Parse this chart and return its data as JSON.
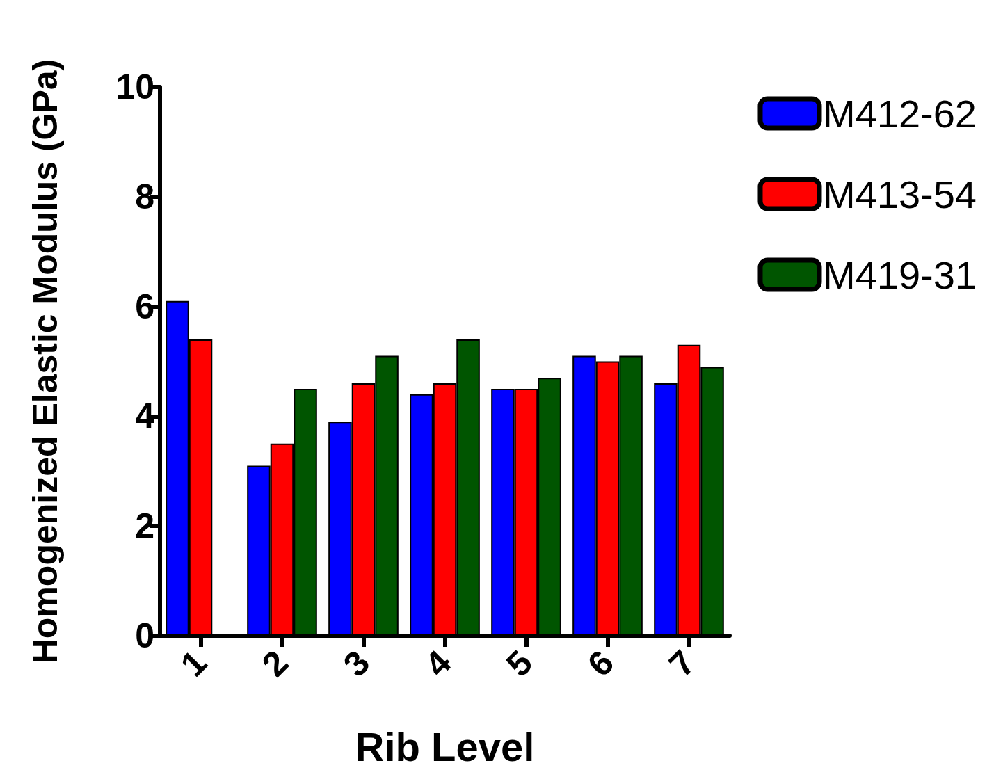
{
  "chart_data": {
    "type": "bar",
    "xlabel": "Rib Level",
    "ylabel": "Homogenized Elastic Modulus (GPa)",
    "categories": [
      "1",
      "2",
      "3",
      "4",
      "5",
      "6",
      "7"
    ],
    "series": [
      {
        "name": "M412-62",
        "color": "#0000ff",
        "values": [
          6.1,
          3.1,
          3.9,
          4.4,
          4.5,
          5.1,
          4.6
        ]
      },
      {
        "name": "M413-54",
        "color": "#ff0000",
        "values": [
          5.4,
          3.5,
          4.6,
          4.6,
          4.5,
          5.0,
          5.3
        ]
      },
      {
        "name": "M419-31",
        "color": "#005500",
        "values": [
          null,
          4.5,
          5.1,
          5.4,
          4.7,
          5.1,
          4.9
        ]
      }
    ],
    "ylim": [
      0,
      10
    ],
    "yticks": [
      0,
      2,
      4,
      6,
      8,
      10
    ],
    "grid": false,
    "legend": "top right"
  }
}
